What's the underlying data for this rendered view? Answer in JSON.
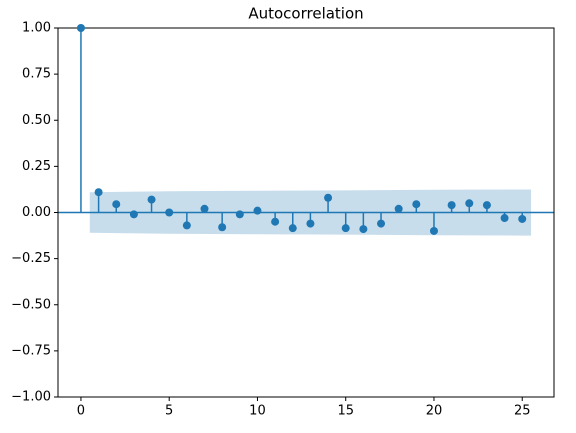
{
  "chart_data": {
    "type": "stem",
    "title": "Autocorrelation",
    "x": [
      0,
      1,
      2,
      3,
      4,
      5,
      6,
      7,
      8,
      9,
      10,
      11,
      12,
      13,
      14,
      15,
      16,
      17,
      18,
      19,
      20,
      21,
      22,
      23,
      24,
      25
    ],
    "values": [
      1.0,
      0.11,
      0.045,
      -0.01,
      0.07,
      0.0,
      -0.07,
      0.02,
      -0.08,
      -0.01,
      0.01,
      -0.05,
      -0.085,
      -0.06,
      0.08,
      -0.085,
      -0.09,
      -0.06,
      0.02,
      0.045,
      -0.1,
      0.04,
      0.05,
      0.04,
      -0.03,
      -0.035
    ],
    "color": "#1f77b4",
    "band": {
      "x": [
        0.5,
        5,
        10,
        15,
        20,
        25.5
      ],
      "upper": [
        0.11,
        0.115,
        0.118,
        0.12,
        0.123,
        0.125
      ],
      "lower": [
        -0.11,
        -0.115,
        -0.118,
        -0.12,
        -0.123,
        -0.125
      ],
      "color": "#1f77b4"
    },
    "xlim": [
      -1.3,
      26.8
    ],
    "ylim": [
      -1,
      1
    ],
    "xticks": [
      0,
      5,
      10,
      15,
      20,
      25
    ],
    "yticks": [
      {
        "value": -1,
        "label": "−1.00"
      },
      {
        "value": -0.75,
        "label": "−0.75"
      },
      {
        "value": -0.5,
        "label": "−0.50"
      },
      {
        "value": -0.25,
        "label": "−0.25"
      },
      {
        "value": 0,
        "label": "0.00"
      },
      {
        "value": 0.25,
        "label": "0.25"
      },
      {
        "value": 0.5,
        "label": "0.50"
      },
      {
        "value": 0.75,
        "label": "0.75"
      },
      {
        "value": 1,
        "label": "1.00"
      }
    ]
  }
}
